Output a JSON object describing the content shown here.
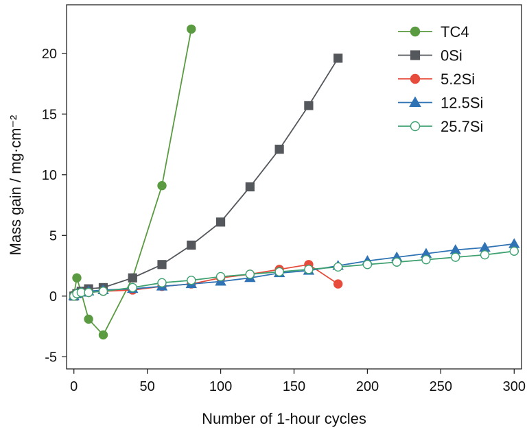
{
  "chart_data": {
    "type": "line",
    "title": "",
    "xlabel": "Number of 1-hour cycles",
    "ylabel": "Mass gain / mg·cm⁻²",
    "xlim": [
      -5,
      305
    ],
    "ylim": [
      -6,
      24
    ],
    "xticks": [
      0,
      50,
      100,
      150,
      200,
      250,
      300
    ],
    "yticks": [
      -5,
      0,
      5,
      10,
      15,
      20
    ],
    "ytick_labels": [
      "-5",
      "0",
      "5",
      "10",
      "15",
      "20"
    ],
    "grid": false,
    "legend_position": "top-right",
    "series": [
      {
        "name": "TC4",
        "color": "#5a9a40",
        "marker": "circle",
        "filled": true,
        "x": [
          0,
          2,
          5,
          10,
          20,
          40,
          60,
          80
        ],
        "y": [
          0.1,
          1.5,
          0.3,
          -1.9,
          -3.2,
          1.5,
          9.1,
          22.0
        ]
      },
      {
        "name": "0Si",
        "color": "#54575b",
        "marker": "square",
        "filled": true,
        "x": [
          0,
          2,
          5,
          10,
          20,
          40,
          60,
          80,
          100,
          120,
          140,
          160,
          180
        ],
        "y": [
          0,
          0.2,
          0.4,
          0.6,
          0.7,
          1.5,
          2.6,
          4.2,
          6.1,
          9.0,
          12.1,
          15.7,
          19.6
        ]
      },
      {
        "name": "5.2Si",
        "color": "#e74b3b",
        "marker": "circle",
        "filled": true,
        "x": [
          0,
          2,
          5,
          10,
          20,
          40,
          60,
          80,
          100,
          120,
          140,
          160,
          180
        ],
        "y": [
          0,
          0.2,
          0.3,
          0.3,
          0.4,
          0.5,
          0.8,
          1.0,
          1.5,
          1.8,
          2.2,
          2.6,
          1.0
        ]
      },
      {
        "name": "12.5Si",
        "color": "#2f73b5",
        "marker": "triangle",
        "filled": true,
        "x": [
          0,
          2,
          5,
          10,
          20,
          40,
          60,
          80,
          100,
          120,
          140,
          160,
          180,
          200,
          220,
          240,
          260,
          280,
          300
        ],
        "y": [
          0,
          0.2,
          0.3,
          0.4,
          0.5,
          0.6,
          0.8,
          1.0,
          1.2,
          1.5,
          1.9,
          2.1,
          2.5,
          2.9,
          3.2,
          3.5,
          3.8,
          4.0,
          4.3
        ]
      },
      {
        "name": "25.7Si",
        "color": "#3fa070",
        "marker": "circle",
        "filled": false,
        "x": [
          0,
          2,
          5,
          10,
          20,
          40,
          60,
          80,
          100,
          120,
          140,
          160,
          180,
          200,
          220,
          240,
          260,
          280,
          300
        ],
        "y": [
          0,
          0.2,
          0.3,
          0.3,
          0.4,
          0.7,
          1.1,
          1.3,
          1.6,
          1.8,
          2.0,
          2.2,
          2.4,
          2.6,
          2.8,
          3.0,
          3.2,
          3.4,
          3.7
        ]
      }
    ]
  }
}
